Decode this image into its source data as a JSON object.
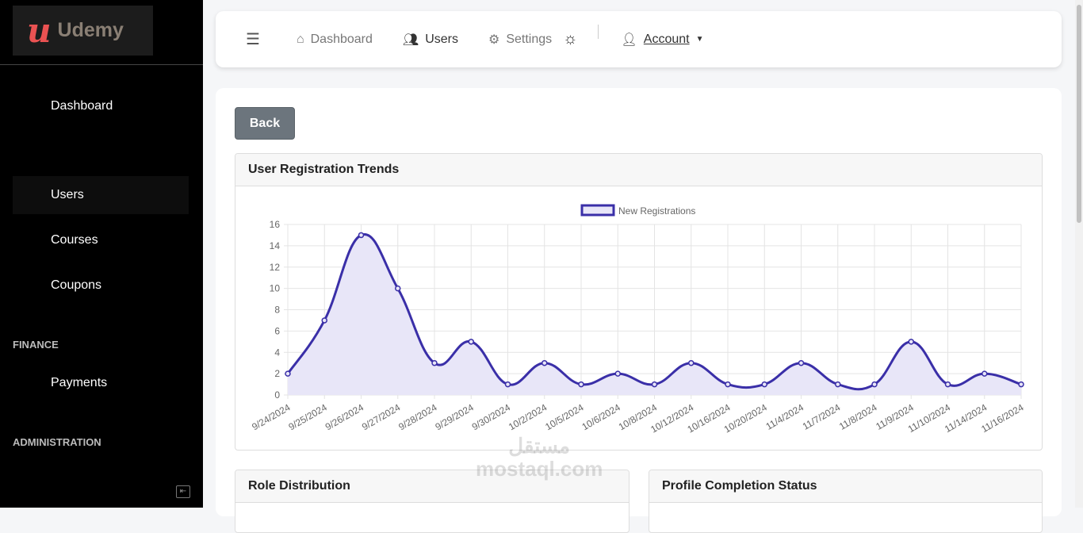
{
  "logo": {
    "text": "Udemy"
  },
  "sidebar": {
    "items": [
      {
        "label": "Dashboard"
      },
      {
        "label": "Users"
      },
      {
        "label": "Courses"
      },
      {
        "label": "Coupons"
      },
      {
        "label": "Payments"
      }
    ],
    "sections": [
      "FINANCE",
      "ADMINISTRATION"
    ]
  },
  "topbar": {
    "dashboard": "Dashboard",
    "users": "Users",
    "settings": "Settings",
    "account": "Account"
  },
  "main": {
    "back": "Back",
    "card1": "User Registration Trends",
    "card2": "Role Distribution",
    "card3": "Profile Completion Status"
  },
  "watermark": {
    "ar": "مستقل",
    "en": "mostaql.com"
  },
  "chart_data": {
    "type": "line",
    "title": "User Registration Trends",
    "legend": [
      "New Registrations"
    ],
    "legend_position": "top",
    "categories": [
      "9/24/2024",
      "9/25/2024",
      "9/26/2024",
      "9/27/2024",
      "9/28/2024",
      "9/29/2024",
      "9/30/2024",
      "10/2/2024",
      "10/5/2024",
      "10/6/2024",
      "10/8/2024",
      "10/12/2024",
      "10/16/2024",
      "10/20/2024",
      "11/4/2024",
      "11/7/2024",
      "11/8/2024",
      "11/9/2024",
      "11/10/2024",
      "11/14/2024",
      "11/16/2024"
    ],
    "series": [
      {
        "name": "New Registrations",
        "values": [
          2,
          7,
          15,
          10,
          3,
          5,
          1,
          3,
          1,
          2,
          1,
          3,
          1,
          1,
          3,
          1,
          1,
          5,
          1,
          2,
          1
        ],
        "color": "#3a2fa8",
        "fill": "#e8e6f8"
      }
    ],
    "ylim": [
      0,
      16
    ],
    "yticks": [
      0,
      2,
      4,
      6,
      8,
      10,
      12,
      14,
      16
    ],
    "grid": true
  }
}
